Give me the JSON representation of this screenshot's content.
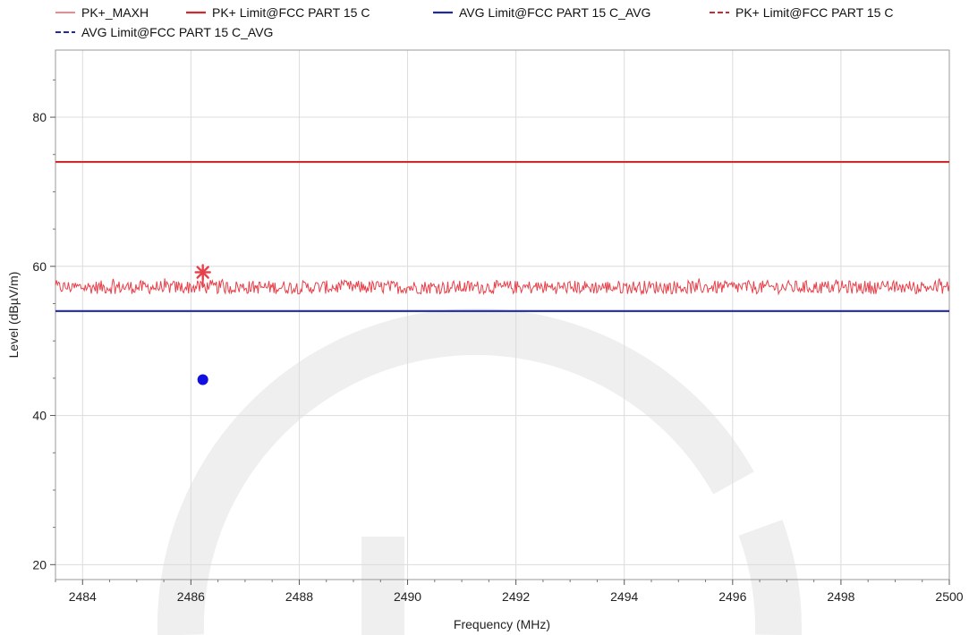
{
  "legend": {
    "items": [
      {
        "label": "PK+_MAXH",
        "color": "#e8404a",
        "style": "thin-solid"
      },
      {
        "label": "PK+ Limit@FCC PART 15 C",
        "color": "#cf2a2f",
        "style": "solid"
      },
      {
        "label": "AVG Limit@FCC PART 15 C_AVG",
        "color": "#1f2a9c",
        "style": "solid"
      },
      {
        "label": "PK+ Limit@FCC PART 15 C",
        "color": "#cf2a2f",
        "style": "dashed"
      },
      {
        "label": "AVG Limit@FCC PART 15 C_AVG",
        "color": "#1f2a9c",
        "style": "dashed"
      }
    ]
  },
  "chart_data": {
    "type": "line",
    "xlabel": "Frequency (MHz)",
    "ylabel": "Level (dBµV/m)",
    "xlim": [
      2483.5,
      2500
    ],
    "ylim": [
      18,
      89
    ],
    "x_ticks": [
      2484,
      2486,
      2488,
      2490,
      2492,
      2494,
      2496,
      2498,
      2500
    ],
    "y_ticks": [
      20,
      40,
      60,
      80
    ],
    "grid": true,
    "legend_position": "top",
    "series": [
      {
        "name": "PK+_MAXH",
        "type": "noisy-trace",
        "x_range": [
          2483.5,
          2500
        ],
        "mean_level": 57.2,
        "variation": 0.9,
        "color": "#e8404a"
      },
      {
        "name": "PK+ Limit@FCC PART 15 C",
        "type": "limit-line",
        "y": 74,
        "color": "#cf2a2f"
      },
      {
        "name": "AVG Limit@FCC PART 15 C_AVG",
        "type": "limit-line",
        "y": 54,
        "color": "#1f2a9c"
      }
    ],
    "markers": [
      {
        "label": "peak-marker",
        "x": 2486.22,
        "y": 59.2,
        "shape": "star",
        "color": "#e8404a"
      },
      {
        "label": "average-marker",
        "x": 2486.22,
        "y": 44.8,
        "shape": "dot",
        "color": "#1010e0"
      }
    ]
  },
  "colors": {
    "grid": "#dcdcdc",
    "axis": "#555555",
    "watermark": "#efefef"
  }
}
